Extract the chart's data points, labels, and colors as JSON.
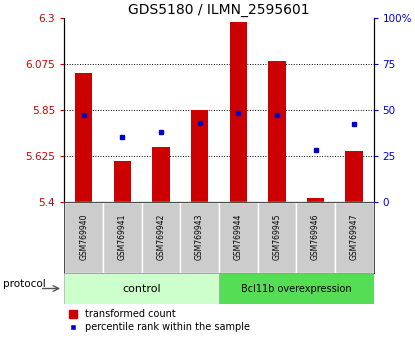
{
  "title": "GDS5180 / ILMN_2595601",
  "samples": [
    "GSM769940",
    "GSM769941",
    "GSM769942",
    "GSM769943",
    "GSM769944",
    "GSM769945",
    "GSM769946",
    "GSM769947"
  ],
  "transformed_count": [
    6.03,
    5.6,
    5.67,
    5.85,
    6.28,
    6.09,
    5.42,
    5.65
  ],
  "percentile_rank": [
    47,
    35,
    38,
    43,
    48,
    47,
    28,
    42
  ],
  "ylim_left": [
    5.4,
    6.3
  ],
  "ylim_right": [
    0,
    100
  ],
  "yticks_left": [
    5.4,
    5.625,
    5.85,
    6.075,
    6.3
  ],
  "yticks_right": [
    0,
    25,
    50,
    75,
    100
  ],
  "ytick_labels_left": [
    "5.4",
    "5.625",
    "5.85",
    "6.075",
    "6.3"
  ],
  "ytick_labels_right": [
    "0",
    "25",
    "50",
    "75",
    "100%"
  ],
  "bar_color": "#cc0000",
  "dot_color": "#0000cc",
  "bar_bottom": 5.4,
  "control_group": [
    0,
    1,
    2,
    3
  ],
  "overexpression_group": [
    4,
    5,
    6,
    7
  ],
  "control_label": "control",
  "overexpression_label": "Bcl11b overexpression",
  "protocol_label": "protocol",
  "group_color_control": "#ccffcc",
  "group_color_overexpression": "#55dd55",
  "sample_label_bg": "#cccccc",
  "legend_red_label": "transformed count",
  "legend_blue_label": "percentile rank within the sample",
  "title_fontsize": 10,
  "axis_fontsize": 7.5,
  "bar_width": 0.45
}
